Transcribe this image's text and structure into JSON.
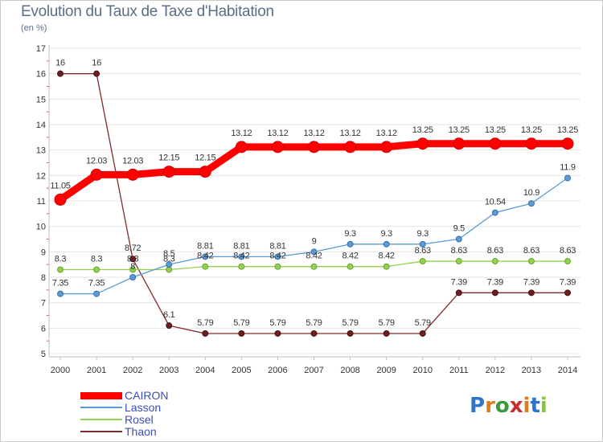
{
  "title": "Evolution du Taux de Taxe d'Habitation",
  "unit_label": "(en %)",
  "logo_text": "Proxiti",
  "chart_data": {
    "type": "line",
    "title": "Evolution du Taux de Taxe d'Habitation",
    "ylabel": "(en %)",
    "xlabel": "",
    "ylim": [
      5,
      17
    ],
    "y_ticks": [
      5,
      6,
      7,
      8,
      9,
      10,
      11,
      12,
      13,
      14,
      15,
      16,
      17
    ],
    "grid": "horizontal",
    "legend_position": "bottom-left",
    "categories": [
      "2000",
      "2001",
      "2002",
      "2003",
      "2004",
      "2005",
      "2006",
      "2007",
      "2008",
      "2009",
      "2010",
      "2011",
      "2012",
      "2013",
      "2014"
    ],
    "series": [
      {
        "name": "CAIRON",
        "color": "#ff0000",
        "values": [
          11.05,
          12.03,
          12.03,
          12.15,
          12.15,
          13.12,
          13.12,
          13.12,
          13.12,
          13.12,
          13.25,
          13.25,
          13.25,
          13.25,
          13.25
        ],
        "labels": [
          "11.05",
          "12.03",
          "12.03",
          "12.15",
          "12.15",
          "13.12",
          "13.12",
          "13.12",
          "13.12",
          "13.12",
          "13.25",
          "13.25",
          "13.25",
          "13.25",
          "13.25"
        ]
      },
      {
        "name": "Lasson",
        "color": "#5b9bd5",
        "values": [
          7.35,
          7.35,
          8,
          8.5,
          8.81,
          8.81,
          8.81,
          9,
          9.3,
          9.3,
          9.3,
          9.5,
          10.54,
          10.9,
          11.9
        ],
        "labels": [
          "7.35",
          "7.35",
          "8",
          "8.5",
          "8.81",
          "8.81",
          "8.81",
          "9",
          "9.3",
          "9.3",
          "9.3",
          "9.5",
          "10.54",
          "10.9",
          "11.9"
        ]
      },
      {
        "name": "Rosel",
        "color": "#92d050",
        "values": [
          8.3,
          8.3,
          8.3,
          8.3,
          8.42,
          8.42,
          8.42,
          8.42,
          8.42,
          8.42,
          8.63,
          8.63,
          8.63,
          8.63,
          8.63
        ],
        "labels": [
          "8.3",
          "8.3",
          "8.3",
          "8.3",
          "8.42",
          "8.42",
          "8.42",
          "8.42",
          "8.42",
          "8.42",
          "8.63",
          "8.63",
          "8.63",
          "8.63",
          "8.63"
        ]
      },
      {
        "name": "Thaon",
        "color": "#7f2a2a",
        "values": [
          16,
          16,
          8.72,
          6.1,
          5.79,
          5.79,
          5.79,
          5.79,
          5.79,
          5.79,
          5.79,
          7.39,
          7.39,
          7.39,
          7.39
        ],
        "labels": [
          "16",
          "16",
          "8.72",
          "6.1",
          "5.79",
          "5.79",
          "5.79",
          "5.79",
          "5.79",
          "5.79",
          "5.79",
          "7.39",
          "7.39",
          "7.39",
          "7.39"
        ]
      }
    ]
  }
}
